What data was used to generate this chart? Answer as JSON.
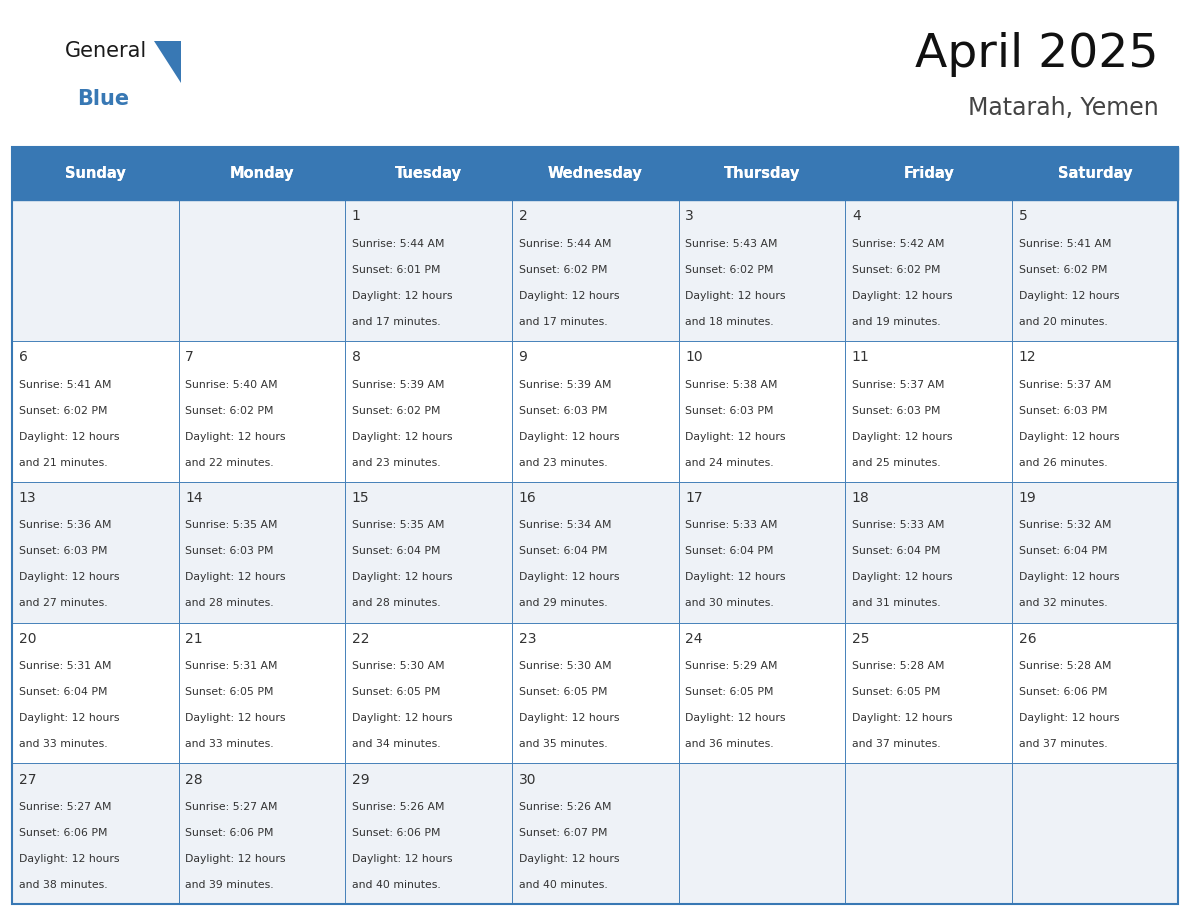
{
  "title": "April 2025",
  "subtitle": "Matarah, Yemen",
  "header_color": "#3878b4",
  "header_text_color": "#ffffff",
  "cell_bg_color": "#eef2f7",
  "cell_alt_color": "#ffffff",
  "border_color": "#3878b4",
  "text_color": "#333333",
  "days_of_week": [
    "Sunday",
    "Monday",
    "Tuesday",
    "Wednesday",
    "Thursday",
    "Friday",
    "Saturday"
  ],
  "weeks": [
    [
      {
        "day": "",
        "sunrise": "",
        "sunset": "",
        "daylight": ""
      },
      {
        "day": "",
        "sunrise": "",
        "sunset": "",
        "daylight": ""
      },
      {
        "day": "1",
        "sunrise": "5:44 AM",
        "sunset": "6:01 PM",
        "daylight": "12 hours\nand 17 minutes."
      },
      {
        "day": "2",
        "sunrise": "5:44 AM",
        "sunset": "6:02 PM",
        "daylight": "12 hours\nand 17 minutes."
      },
      {
        "day": "3",
        "sunrise": "5:43 AM",
        "sunset": "6:02 PM",
        "daylight": "12 hours\nand 18 minutes."
      },
      {
        "day": "4",
        "sunrise": "5:42 AM",
        "sunset": "6:02 PM",
        "daylight": "12 hours\nand 19 minutes."
      },
      {
        "day": "5",
        "sunrise": "5:41 AM",
        "sunset": "6:02 PM",
        "daylight": "12 hours\nand 20 minutes."
      }
    ],
    [
      {
        "day": "6",
        "sunrise": "5:41 AM",
        "sunset": "6:02 PM",
        "daylight": "12 hours\nand 21 minutes."
      },
      {
        "day": "7",
        "sunrise": "5:40 AM",
        "sunset": "6:02 PM",
        "daylight": "12 hours\nand 22 minutes."
      },
      {
        "day": "8",
        "sunrise": "5:39 AM",
        "sunset": "6:02 PM",
        "daylight": "12 hours\nand 23 minutes."
      },
      {
        "day": "9",
        "sunrise": "5:39 AM",
        "sunset": "6:03 PM",
        "daylight": "12 hours\nand 23 minutes."
      },
      {
        "day": "10",
        "sunrise": "5:38 AM",
        "sunset": "6:03 PM",
        "daylight": "12 hours\nand 24 minutes."
      },
      {
        "day": "11",
        "sunrise": "5:37 AM",
        "sunset": "6:03 PM",
        "daylight": "12 hours\nand 25 minutes."
      },
      {
        "day": "12",
        "sunrise": "5:37 AM",
        "sunset": "6:03 PM",
        "daylight": "12 hours\nand 26 minutes."
      }
    ],
    [
      {
        "day": "13",
        "sunrise": "5:36 AM",
        "sunset": "6:03 PM",
        "daylight": "12 hours\nand 27 minutes."
      },
      {
        "day": "14",
        "sunrise": "5:35 AM",
        "sunset": "6:03 PM",
        "daylight": "12 hours\nand 28 minutes."
      },
      {
        "day": "15",
        "sunrise": "5:35 AM",
        "sunset": "6:04 PM",
        "daylight": "12 hours\nand 28 minutes."
      },
      {
        "day": "16",
        "sunrise": "5:34 AM",
        "sunset": "6:04 PM",
        "daylight": "12 hours\nand 29 minutes."
      },
      {
        "day": "17",
        "sunrise": "5:33 AM",
        "sunset": "6:04 PM",
        "daylight": "12 hours\nand 30 minutes."
      },
      {
        "day": "18",
        "sunrise": "5:33 AM",
        "sunset": "6:04 PM",
        "daylight": "12 hours\nand 31 minutes."
      },
      {
        "day": "19",
        "sunrise": "5:32 AM",
        "sunset": "6:04 PM",
        "daylight": "12 hours\nand 32 minutes."
      }
    ],
    [
      {
        "day": "20",
        "sunrise": "5:31 AM",
        "sunset": "6:04 PM",
        "daylight": "12 hours\nand 33 minutes."
      },
      {
        "day": "21",
        "sunrise": "5:31 AM",
        "sunset": "6:05 PM",
        "daylight": "12 hours\nand 33 minutes."
      },
      {
        "day": "22",
        "sunrise": "5:30 AM",
        "sunset": "6:05 PM",
        "daylight": "12 hours\nand 34 minutes."
      },
      {
        "day": "23",
        "sunrise": "5:30 AM",
        "sunset": "6:05 PM",
        "daylight": "12 hours\nand 35 minutes."
      },
      {
        "day": "24",
        "sunrise": "5:29 AM",
        "sunset": "6:05 PM",
        "daylight": "12 hours\nand 36 minutes."
      },
      {
        "day": "25",
        "sunrise": "5:28 AM",
        "sunset": "6:05 PM",
        "daylight": "12 hours\nand 37 minutes."
      },
      {
        "day": "26",
        "sunrise": "5:28 AM",
        "sunset": "6:06 PM",
        "daylight": "12 hours\nand 37 minutes."
      }
    ],
    [
      {
        "day": "27",
        "sunrise": "5:27 AM",
        "sunset": "6:06 PM",
        "daylight": "12 hours\nand 38 minutes."
      },
      {
        "day": "28",
        "sunrise": "5:27 AM",
        "sunset": "6:06 PM",
        "daylight": "12 hours\nand 39 minutes."
      },
      {
        "day": "29",
        "sunrise": "5:26 AM",
        "sunset": "6:06 PM",
        "daylight": "12 hours\nand 40 minutes."
      },
      {
        "day": "30",
        "sunrise": "5:26 AM",
        "sunset": "6:07 PM",
        "daylight": "12 hours\nand 40 minutes."
      },
      {
        "day": "",
        "sunrise": "",
        "sunset": "",
        "daylight": ""
      },
      {
        "day": "",
        "sunrise": "",
        "sunset": "",
        "daylight": ""
      },
      {
        "day": "",
        "sunrise": "",
        "sunset": "",
        "daylight": ""
      }
    ]
  ],
  "logo_color_general": "#1a1a1a",
  "logo_color_blue": "#3878b4",
  "fig_width": 11.88,
  "fig_height": 9.18,
  "dpi": 100
}
